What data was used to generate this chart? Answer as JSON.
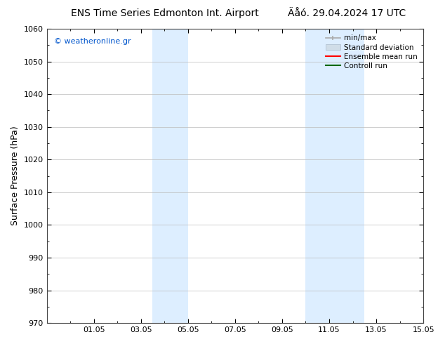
{
  "title_left": "ENS Time Series Edmonton Int. Airport",
  "title_right": "Äåό. 29.04.2024 17 UTC",
  "ylabel": "Surface Pressure (hPa)",
  "ylim": [
    970,
    1060
  ],
  "yticks": [
    970,
    980,
    990,
    1000,
    1010,
    1020,
    1030,
    1040,
    1050,
    1060
  ],
  "xlim_start": 0.0,
  "xlim_end": 16.0,
  "xtick_labels": [
    "01.05",
    "03.05",
    "05.05",
    "07.05",
    "09.05",
    "11.05",
    "13.05",
    "15.05"
  ],
  "xtick_positions": [
    2.0,
    4.0,
    6.0,
    8.0,
    10.0,
    12.0,
    14.0,
    16.0
  ],
  "shaded_bands": [
    {
      "x_start": 4.5,
      "x_end": 6.0,
      "color": "#ddeeff"
    },
    {
      "x_start": 11.0,
      "x_end": 13.5,
      "color": "#ddeeff"
    }
  ],
  "watermark": "© weatheronline.gr",
  "watermark_color": "#0055cc",
  "bg_color": "#ffffff",
  "plot_bg_color": "#ffffff",
  "grid_color": "#bbbbbb",
  "title_fontsize": 10,
  "tick_fontsize": 8,
  "ylabel_fontsize": 9,
  "legend_fontsize": 7.5
}
